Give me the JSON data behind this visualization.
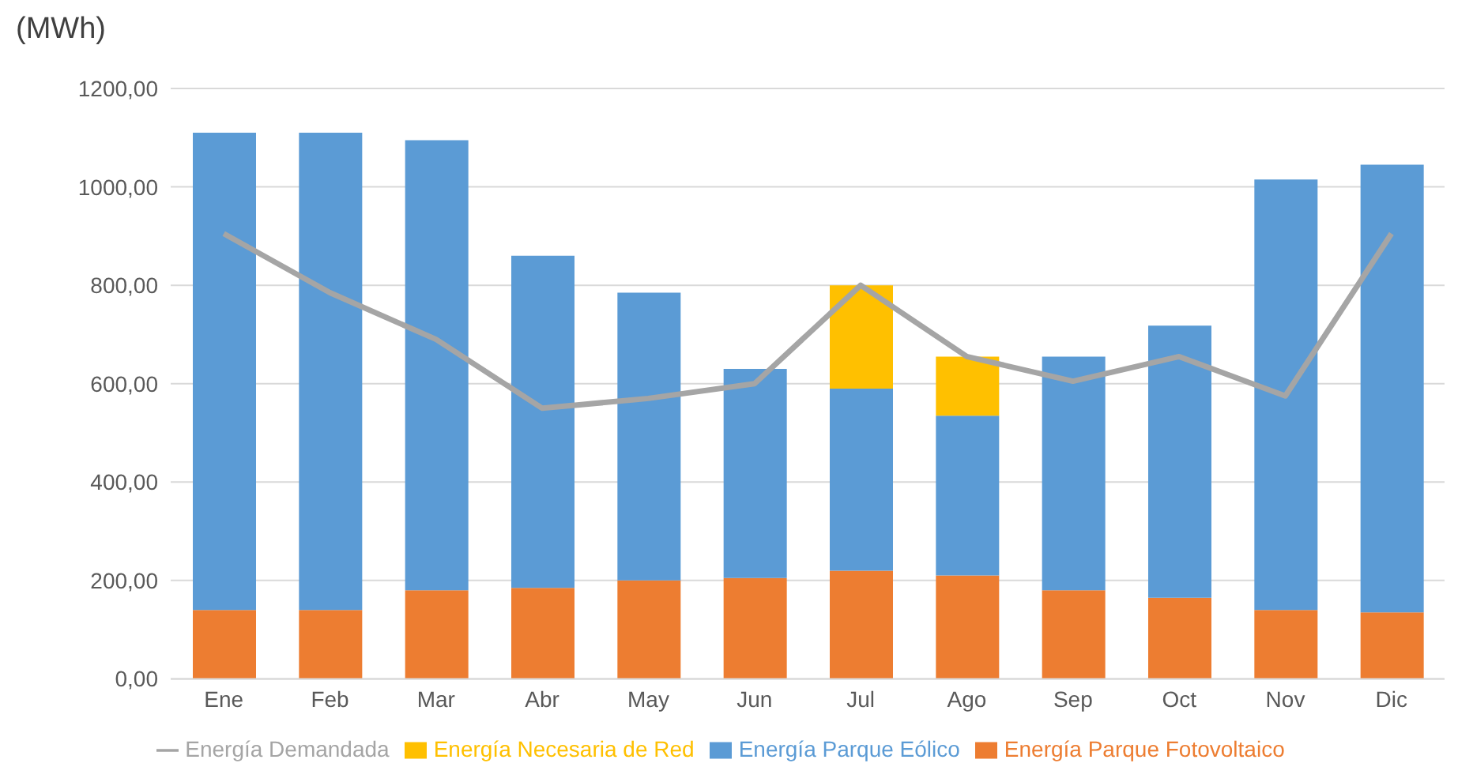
{
  "chart_data": {
    "type": "bar",
    "stacked": true,
    "ylabel": "(MWh)",
    "categories": [
      "Ene",
      "Feb",
      "Mar",
      "Abr",
      "May",
      "Jun",
      "Jul",
      "Ago",
      "Sep",
      "Oct",
      "Nov",
      "Dic"
    ],
    "series": [
      {
        "name": "Energía Parque Fotovoltaico",
        "color": "#ed7d31",
        "values": [
          140,
          140,
          180,
          185,
          200,
          205,
          220,
          210,
          180,
          165,
          140,
          135
        ]
      },
      {
        "name": "Energía Parque Eólico",
        "color": "#5b9bd5",
        "values": [
          970,
          970,
          915,
          675,
          585,
          425,
          370,
          325,
          475,
          553,
          875,
          910
        ]
      },
      {
        "name": "Energía Necesaria de Red",
        "color": "#ffc000",
        "values": [
          null,
          null,
          null,
          null,
          null,
          null,
          210,
          120,
          null,
          null,
          null,
          null
        ]
      },
      {
        "name": "Energía Demandada",
        "type": "line",
        "color": "#a5a5a5",
        "values": [
          905,
          785,
          690,
          550,
          570,
          600,
          800,
          655,
          605,
          655,
          575,
          905
        ]
      }
    ],
    "ylim": [
      0,
      1200
    ],
    "yticks": [
      {
        "value": 0,
        "label": "0,00"
      },
      {
        "value": 200,
        "label": "200,00"
      },
      {
        "value": 400,
        "label": "400,00"
      },
      {
        "value": 600,
        "label": "600,00"
      },
      {
        "value": 800,
        "label": "800,00"
      },
      {
        "value": 1000,
        "label": "1000,00"
      },
      {
        "value": 1200,
        "label": "1200,00"
      }
    ],
    "grid": "y",
    "legend": "bottom",
    "marker": "none",
    "line_style": "solid"
  }
}
